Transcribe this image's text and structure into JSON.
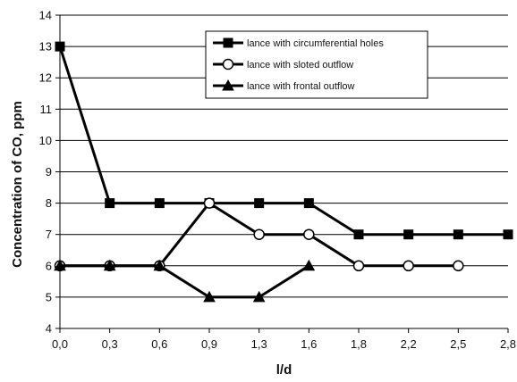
{
  "chart_data": {
    "type": "line",
    "title": "",
    "xlabel": "l/d",
    "ylabel": "Concentration of CO, ppm",
    "categories": [
      "0,0",
      "0,3",
      "0,6",
      "0,9",
      "1,3",
      "1,6",
      "1,8",
      "2,2",
      "2,5",
      "2,8"
    ],
    "ylim": [
      4,
      14
    ],
    "yticks": [
      "4",
      "5",
      "6",
      "7",
      "8",
      "9",
      "10",
      "11",
      "12",
      "13",
      "14"
    ],
    "grid": "horizontal",
    "legend_position": "top-right",
    "series": [
      {
        "name": "lance with circumferential holes",
        "marker": "square-filled",
        "values": [
          13,
          8,
          8,
          8,
          8,
          8,
          7,
          7,
          7,
          7
        ]
      },
      {
        "name": "lance with sloted outflow",
        "marker": "circle-open",
        "values": [
          6,
          6,
          6,
          8,
          7,
          7,
          6,
          6,
          6,
          null
        ]
      },
      {
        "name": "lance with frontal outflow",
        "marker": "triangle-filled",
        "values": [
          6,
          6,
          6,
          5,
          5,
          6,
          null,
          null,
          null,
          null
        ]
      }
    ],
    "colors": {
      "line": "#000000",
      "grid": "#000000",
      "background": "#ffffff"
    }
  }
}
